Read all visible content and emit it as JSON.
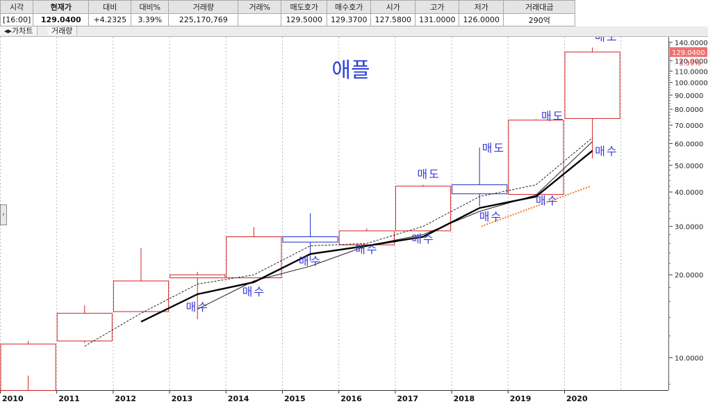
{
  "quote": {
    "headers": [
      "시각",
      "현재가",
      "대비",
      "대비%",
      "거래량",
      "거래%",
      "매도호가",
      "매수호가",
      "시가",
      "고가",
      "저가",
      "거래대금"
    ],
    "values": [
      "[16:00]",
      "129.0400",
      "+4.2325",
      "3.39%",
      "225,170,769",
      "",
      "129.5000",
      "129.3700",
      "127.5800",
      "131.0000",
      "126.0000",
      "290억"
    ]
  },
  "tabs": [
    "가차트",
    "거래량"
  ],
  "side_button": "›",
  "chart_data": {
    "type": "candlestick",
    "title": "애플",
    "yscale": "log",
    "ylim": [
      7.8,
      150
    ],
    "yticks": [
      10,
      20,
      30,
      40,
      50,
      60,
      70,
      80,
      90,
      100,
      110,
      120,
      130,
      140
    ],
    "ytick_labels": [
      "10.0000",
      "20.0000",
      "30.0000",
      "40.0000",
      "50.0000",
      "60.0000",
      "70.0000",
      "80.0000",
      "90.0000",
      "100.0000",
      "110.0000",
      "120.0000",
      "130.0000",
      "140.0000"
    ],
    "categories": [
      "2010",
      "2011",
      "2012",
      "2013",
      "2014",
      "2015",
      "2016",
      "2017",
      "2018",
      "2019",
      "2020"
    ],
    "candles": [
      {
        "year": "2010",
        "open": 7.6,
        "high": 11.5,
        "low": 8.6,
        "close": 11.2
      },
      {
        "year": "2011",
        "open": 11.5,
        "high": 15.5,
        "low": 11.3,
        "close": 14.5
      },
      {
        "year": "2012",
        "open": 14.7,
        "high": 25.0,
        "low": 14.7,
        "close": 19.0
      },
      {
        "year": "2013",
        "open": 19.5,
        "high": 20.5,
        "low": 13.8,
        "close": 20.0
      },
      {
        "year": "2014",
        "open": 19.5,
        "high": 29.8,
        "low": 19.5,
        "close": 27.5
      },
      {
        "year": "2015",
        "open": 27.5,
        "high": 33.5,
        "low": 22.5,
        "close": 26.3
      },
      {
        "year": "2016",
        "open": 25.7,
        "high": 29.5,
        "low": 25.3,
        "close": 28.9
      },
      {
        "year": "2017",
        "open": 28.9,
        "high": 42.5,
        "low": 28.9,
        "close": 42.0
      },
      {
        "year": "2018",
        "open": 42.5,
        "high": 58.0,
        "low": 35.5,
        "close": 39.4
      },
      {
        "year": "2019",
        "open": 39.2,
        "high": 73.5,
        "low": 39.2,
        "close": 73.0
      },
      {
        "year": "2020",
        "open": 74.0,
        "high": 134.0,
        "low": 53.0,
        "close": 129.04
      }
    ],
    "ma_solid_bold": [
      null,
      null,
      13.5,
      17.0,
      18.8,
      23.8,
      25.5,
      27.5,
      35.0,
      38.5,
      56.5
    ],
    "ma_solid_thin": [
      null,
      null,
      null,
      15.0,
      19.0,
      21.5,
      25.5,
      28.0,
      34.0,
      39.0,
      61.0
    ],
    "ma_dashed": [
      null,
      11.0,
      14.5,
      18.5,
      20.0,
      25.5,
      26.0,
      30.0,
      38.5,
      42.5,
      63.0
    ],
    "orange_trend": [
      [
        9.0,
        30.0
      ],
      [
        10.0,
        42.0
      ]
    ],
    "annotations": [
      {
        "text": "매수",
        "x": 3.5,
        "y": 14.8,
        "align": "middle"
      },
      {
        "text": "매수",
        "x": 4.5,
        "y": 16.8,
        "align": "middle"
      },
      {
        "text": "매수",
        "x": 5.5,
        "y": 21.7,
        "align": "middle"
      },
      {
        "text": "매수",
        "x": 6.5,
        "y": 24.0,
        "align": "middle"
      },
      {
        "text": "매수",
        "x": 7.5,
        "y": 26.2,
        "align": "middle"
      },
      {
        "text": "매수",
        "x": 8.7,
        "y": 31.5,
        "align": "middle"
      },
      {
        "text": "매수",
        "x": 9.7,
        "y": 36.0,
        "align": "middle"
      },
      {
        "text": "매수",
        "x": 10.75,
        "y": 54.5,
        "align": "middle"
      },
      {
        "text": "매도",
        "x": 7.6,
        "y": 45.0,
        "align": "middle"
      },
      {
        "text": "매도",
        "x": 8.75,
        "y": 56.0,
        "align": "middle"
      },
      {
        "text": "매도",
        "x": 9.8,
        "y": 73.0,
        "align": "middle"
      },
      {
        "text": "매도",
        "x": 10.75,
        "y": 142.0,
        "align": "middle"
      }
    ],
    "last_price_label": "129.0400",
    "last_change_label": "3.39%",
    "colors": {
      "up": "#d42020",
      "down": "#1c2cc8",
      "annotation": "#3b3bd8",
      "title": "#2c3fd0",
      "price_tag_bg": "#f07070",
      "change_text": "#e03030",
      "orange": "#f08030",
      "grid": "#b8b8b8"
    }
  }
}
